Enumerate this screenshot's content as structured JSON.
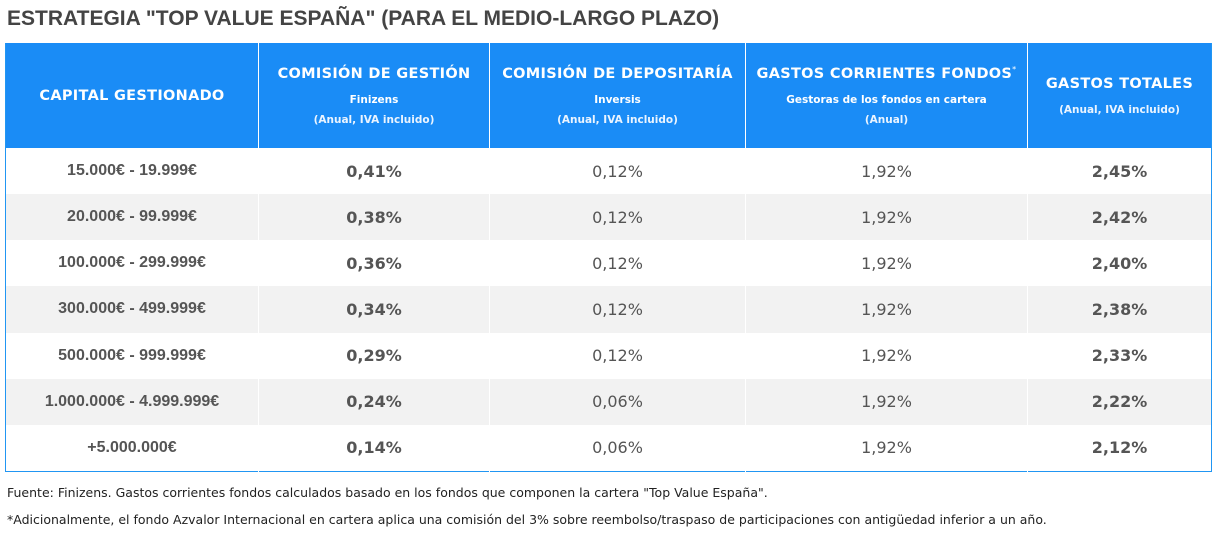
{
  "title": "ESTRATEGIA \"TOP VALUE ESPAÑA\" (PARA EL MEDIO-LARGO PLAZO)",
  "colors": {
    "header_bg": "#1a8cf6",
    "accent": "#2591ea",
    "row_alt": "#f2f2f2"
  },
  "table": {
    "headers": [
      {
        "main": "CAPITAL GESTIONADO",
        "sup": "",
        "sub": "",
        "note": ""
      },
      {
        "main": "COMISIÓN DE GESTIÓN",
        "sup": "",
        "sub": "Finizens",
        "note": "(Anual, IVA incluido)"
      },
      {
        "main": "COMISIÓN DE DEPOSITARÍA",
        "sup": "",
        "sub": "Inversis",
        "note": "(Anual, IVA incluido)"
      },
      {
        "main": "GASTOS CORRIENTES FONDOS",
        "sup": "*",
        "sub": "Gestoras de los fondos en cartera",
        "note": "(Anual)"
      },
      {
        "main": "GASTOS TOTALES",
        "sup": "",
        "sub": "",
        "note": "(Anual, IVA incluido)"
      }
    ],
    "rows": [
      {
        "range": "15.000€  -  19.999€",
        "gestion": "0,41%",
        "depositaria": "0,12%",
        "corrientes": "1,92%",
        "total": "2,45%"
      },
      {
        "range": "20.000€  -  99.999€",
        "gestion": "0,38%",
        "depositaria": "0,12%",
        "corrientes": "1,92%",
        "total": "2,42%"
      },
      {
        "range": "100.000€  -  299.999€",
        "gestion": "0,36%",
        "depositaria": "0,12%",
        "corrientes": "1,92%",
        "total": "2,40%"
      },
      {
        "range": "300.000€  -  499.999€",
        "gestion": "0,34%",
        "depositaria": "0,12%",
        "corrientes": "1,92%",
        "total": "2,38%"
      },
      {
        "range": "500.000€  -  999.999€",
        "gestion": "0,29%",
        "depositaria": "0,12%",
        "corrientes": "1,92%",
        "total": "2,33%"
      },
      {
        "range": "1.000.000€  -  4.999.999€",
        "gestion": "0,24%",
        "depositaria": "0,06%",
        "corrientes": "1,92%",
        "total": "2,22%"
      },
      {
        "range": "+5.000.000€",
        "gestion": "0,14%",
        "depositaria": "0,06%",
        "corrientes": "1,92%",
        "total": "2,12%"
      }
    ]
  },
  "footnotes": {
    "source": "Fuente: Finizens. Gastos corrientes fondos calculados basado en los fondos que componen la cartera \"Top Value España\".",
    "asterisk": "*Adicionalmente, el fondo Azvalor Internacional en cartera aplica una comisión del 3% sobre reembolso/traspaso de participaciones con antigüedad inferior a un año."
  }
}
